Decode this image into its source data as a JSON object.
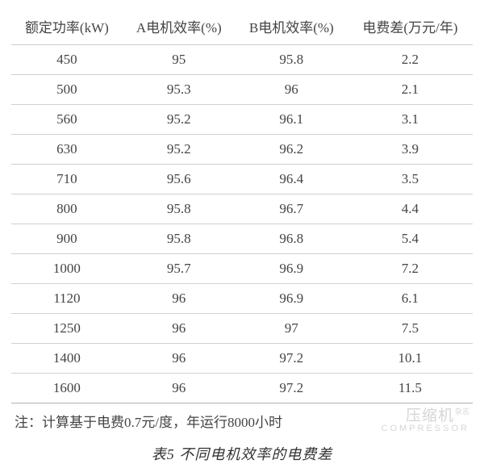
{
  "table": {
    "columns": [
      "额定功率(kW)",
      "A电机效率(%)",
      "B电机效率(%)",
      "电费差(万元/年)"
    ],
    "rows": [
      [
        "450",
        "95",
        "95.8",
        "2.2"
      ],
      [
        "500",
        "95.3",
        "96",
        "2.1"
      ],
      [
        "560",
        "95.2",
        "96.1",
        "3.1"
      ],
      [
        "630",
        "95.2",
        "96.2",
        "3.9"
      ],
      [
        "710",
        "95.6",
        "96.4",
        "3.5"
      ],
      [
        "800",
        "95.8",
        "96.7",
        "4.4"
      ],
      [
        "900",
        "95.8",
        "96.8",
        "5.4"
      ],
      [
        "1000",
        "95.7",
        "96.9",
        "7.2"
      ],
      [
        "1120",
        "96",
        "96.9",
        "6.1"
      ],
      [
        "1250",
        "96",
        "97",
        "7.5"
      ],
      [
        "1400",
        "96",
        "97.2",
        "10.1"
      ],
      [
        "1600",
        "96",
        "97.2",
        "11.5"
      ]
    ],
    "header_border_color": "#cccccc",
    "row_border_color": "#d0d0d0",
    "text_color": "#444444",
    "font_size": 17
  },
  "note": "注：计算基于电费0.7元/度，年运行8000小时",
  "watermark": {
    "cn": "压缩机",
    "sup": "杂志",
    "en": "COMPRESSOR"
  },
  "caption": "表5  不同电机效率的电费差"
}
